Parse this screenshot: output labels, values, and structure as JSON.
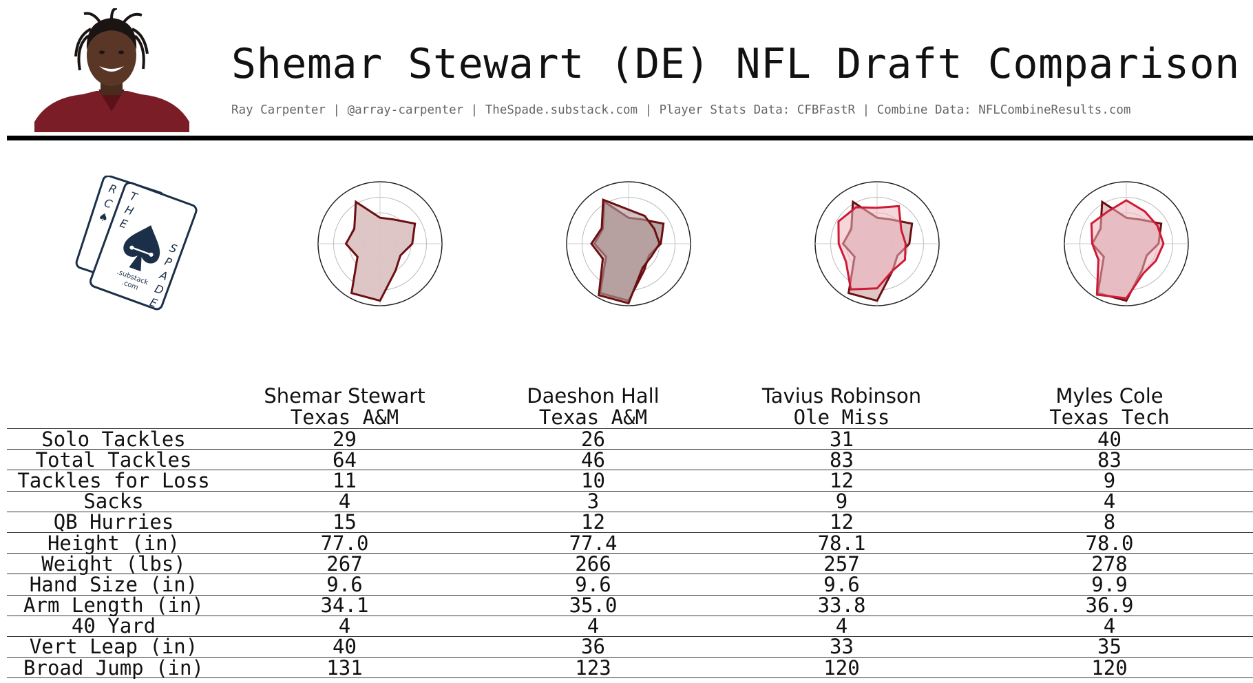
{
  "header": {
    "title": "Shemar Stewart (DE) NFL Draft Comparison",
    "subtitle": "Ray Carpenter | @array-carpenter | TheSpade.substack.com | Player Stats Data: CFBFastR | Combine Data: NFLCombineResults.com"
  },
  "logo": {
    "card_letters_back": [
      "R",
      "C",
      "♠"
    ],
    "card_letters_front_left": [
      "T",
      "H",
      "E"
    ],
    "card_letters_front_right": [
      "S",
      "P",
      "A",
      "D",
      "E"
    ],
    "substack": ".substack",
    "com": ".com"
  },
  "colors": {
    "primary": "#6b0f12",
    "primary_fill": "#dcc3c4",
    "dark_fill": "#b49e9e",
    "comp_outline_light": "#cf1a36",
    "comp_fill_light": "#eeb4bd",
    "rule": "#000000"
  },
  "chart_data": {
    "type": "table",
    "players": [
      {
        "name": "Shemar Stewart",
        "school": "Texas A&M"
      },
      {
        "name": "Daeshon Hall",
        "school": "Texas A&M"
      },
      {
        "name": "Tavius Robinson",
        "school": "Ole Miss"
      },
      {
        "name": "Myles Cole",
        "school": "Texas Tech"
      }
    ],
    "rows": [
      {
        "label": "Solo Tackles",
        "values": [
          "29",
          "26",
          "31",
          "40"
        ]
      },
      {
        "label": "Total Tackles",
        "values": [
          "64",
          "46",
          "83",
          "83"
        ]
      },
      {
        "label": "Tackles for Loss",
        "values": [
          "11",
          "10",
          "12",
          "9"
        ]
      },
      {
        "label": "Sacks",
        "values": [
          "4",
          "3",
          "9",
          "4"
        ]
      },
      {
        "label": "QB Hurries",
        "values": [
          "15",
          "12",
          "12",
          "8"
        ]
      },
      {
        "label": "Height (in)",
        "values": [
          "77.0",
          "77.4",
          "78.1",
          "78.0"
        ]
      },
      {
        "label": "Weight (lbs)",
        "values": [
          "267",
          "266",
          "257",
          "278"
        ]
      },
      {
        "label": "Hand Size (in)",
        "values": [
          "9.6",
          "9.6",
          "9.6",
          "9.9"
        ]
      },
      {
        "label": "Arm Length (in)",
        "values": [
          "34.1",
          "35.0",
          "33.8",
          "36.9"
        ]
      },
      {
        "label": "40 Yard",
        "values": [
          "4",
          "4",
          "4",
          "4"
        ]
      },
      {
        "label": "Vert Leap (in)",
        "values": [
          "40",
          "36",
          "33",
          "35"
        ]
      },
      {
        "label": "Broad Jump (in)",
        "values": [
          "131",
          "123",
          "120",
          "120"
        ]
      }
    ],
    "radar": {
      "type": "radar",
      "grid": true,
      "rings": 4,
      "axes": 12,
      "range": [
        0,
        1
      ],
      "subject": [
        0.42,
        0.45,
        0.65,
        0.52,
        0.38,
        0.5,
        0.92,
        0.92,
        0.42,
        0.55,
        0.48,
        0.78
      ],
      "comparisons": [
        {
          "values": [
            0.55,
            0.52,
            0.48,
            0.5,
            0.42,
            0.45,
            0.96,
            0.96,
            0.48,
            0.6,
            0.5,
            0.82
          ],
          "style": "dark"
        },
        {
          "values": [
            0.58,
            0.7,
            0.45,
            0.46,
            0.52,
            0.5,
            0.72,
            0.85,
            0.58,
            0.62,
            0.72,
            0.68
          ],
          "style": "light"
        },
        {
          "values": [
            0.7,
            0.6,
            0.58,
            0.6,
            0.55,
            0.55,
            0.88,
            0.95,
            0.52,
            0.55,
            0.65,
            0.6
          ],
          "style": "light"
        }
      ]
    }
  }
}
